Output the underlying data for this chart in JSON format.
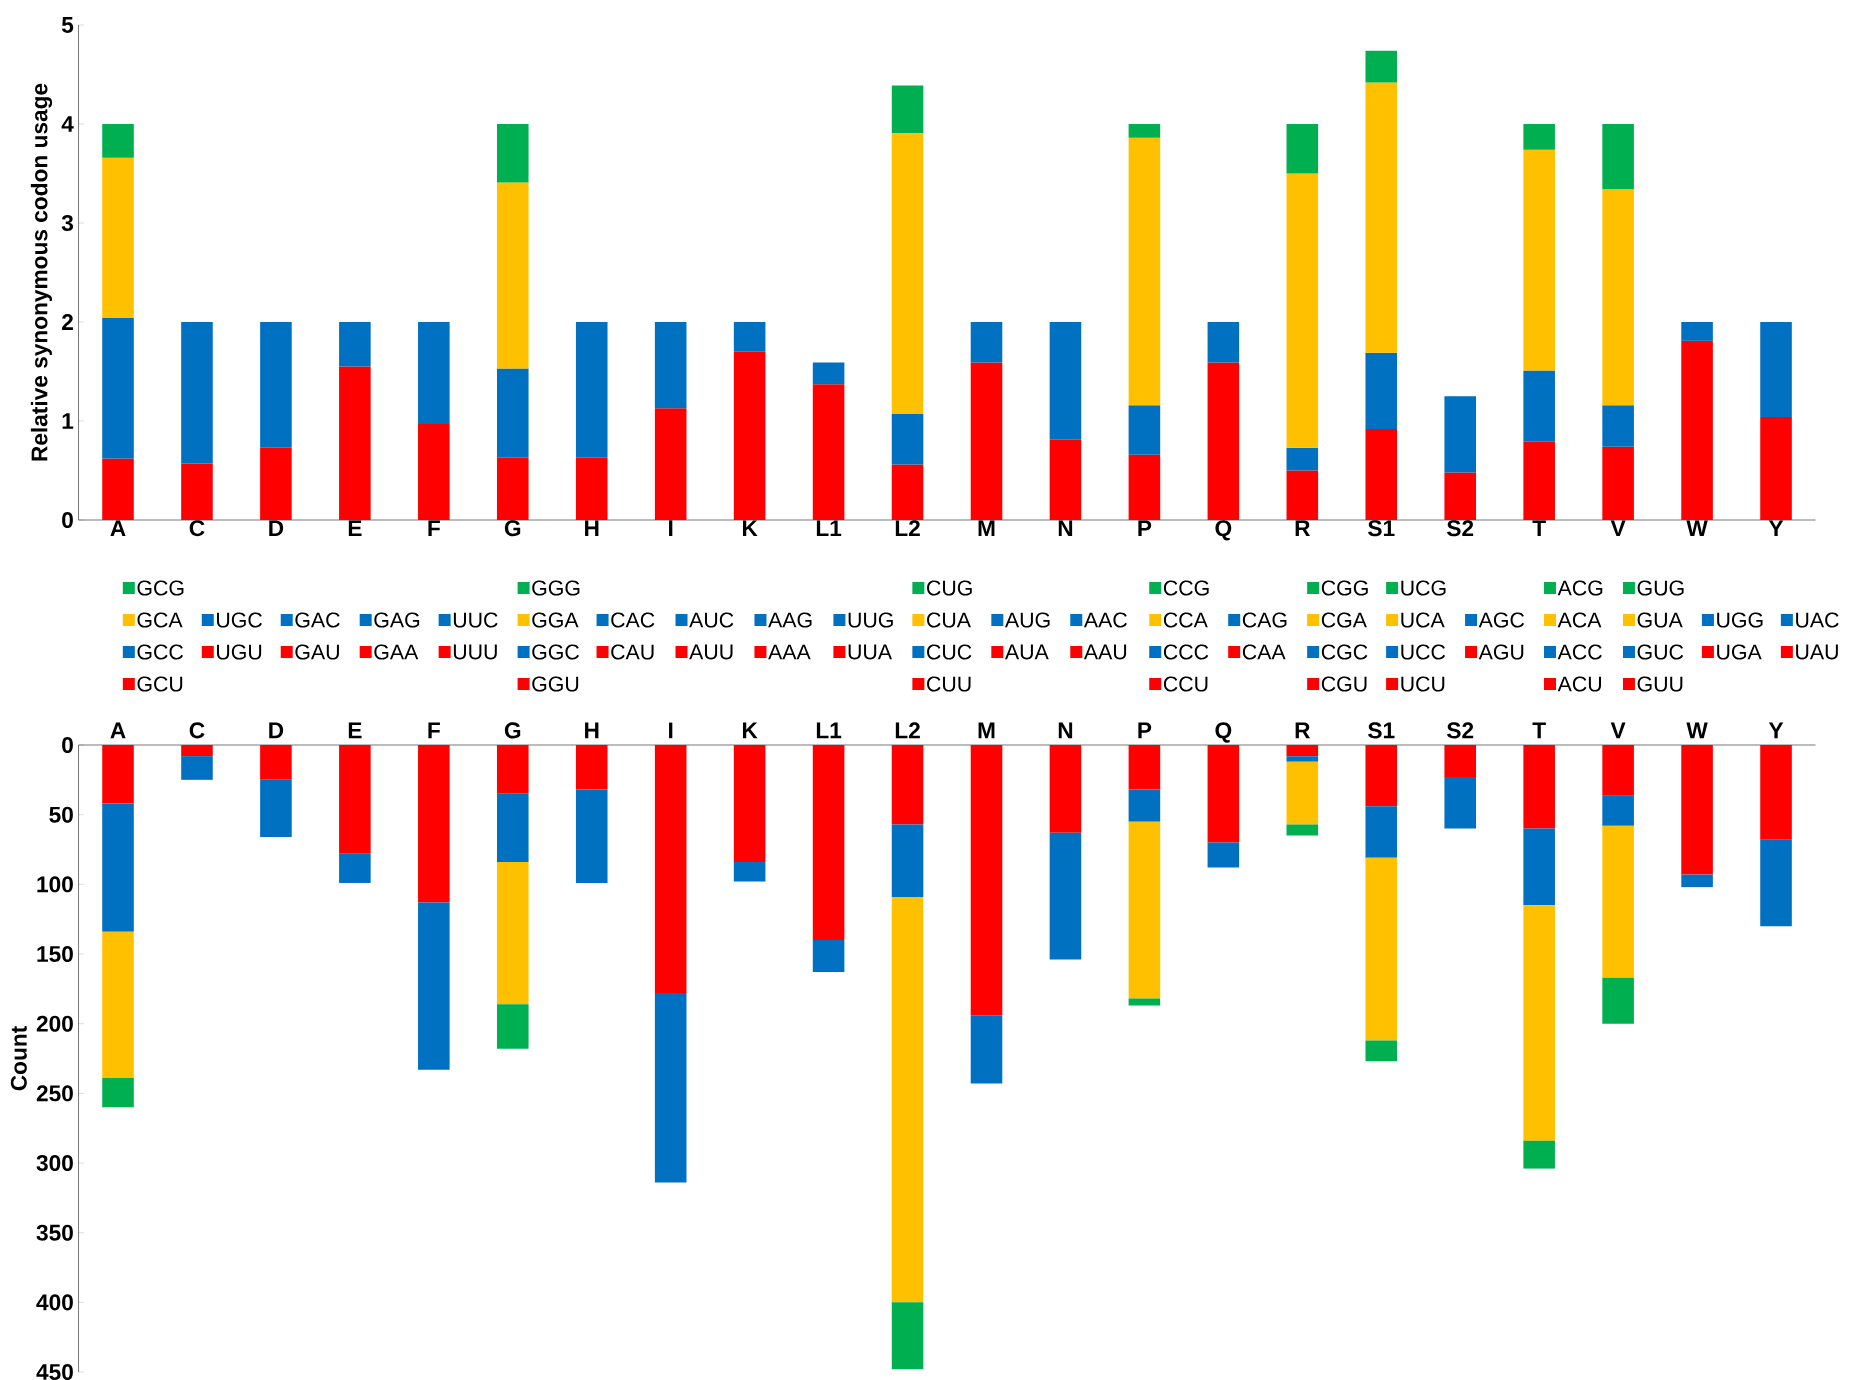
{
  "chart_data": [
    {
      "type": "bar",
      "stacked": true,
      "ylabel": "Relative synonymous codon usage",
      "legend": "bottom",
      "categories": [
        "A",
        "C",
        "D",
        "E",
        "F",
        "G",
        "H",
        "I",
        "K",
        "L1",
        "L2",
        "M",
        "N",
        "P",
        "Q",
        "R",
        "S1",
        "S2",
        "T",
        "V",
        "W",
        "Y"
      ],
      "ylim": [
        0,
        5
      ],
      "yticks": [
        0,
        1,
        2,
        3,
        4,
        5
      ],
      "series": [
        {
          "name": "GCU",
          "color": "#ff0000",
          "values": [
            0.62,
            null,
            null,
            null,
            null,
            null,
            null,
            null,
            null,
            null,
            null,
            null,
            null,
            null,
            null,
            null,
            null,
            null,
            null,
            null,
            null,
            null
          ]
        },
        {
          "name": "GCC",
          "color": "#0070c0",
          "values": [
            1.42,
            null,
            null,
            null,
            null,
            null,
            null,
            null,
            null,
            null,
            null,
            null,
            null,
            null,
            null,
            null,
            null,
            null,
            null,
            null,
            null,
            null
          ]
        },
        {
          "name": "GCA",
          "color": "#ffc000",
          "values": [
            1.62,
            null,
            null,
            null,
            null,
            null,
            null,
            null,
            null,
            null,
            null,
            null,
            null,
            null,
            null,
            null,
            null,
            null,
            null,
            null,
            null,
            null
          ]
        },
        {
          "name": "GCG",
          "color": "#00b050",
          "values": [
            0.34,
            null,
            null,
            null,
            null,
            null,
            null,
            null,
            null,
            null,
            null,
            null,
            null,
            null,
            null,
            null,
            null,
            null,
            null,
            null,
            null,
            null
          ]
        },
        {
          "name": "UGU",
          "color": "#ff0000",
          "values": [
            null,
            0.57,
            null,
            null,
            null,
            null,
            null,
            null,
            null,
            null,
            null,
            null,
            null,
            null,
            null,
            null,
            null,
            null,
            null,
            null,
            null,
            null
          ]
        },
        {
          "name": "UGC",
          "color": "#0070c0",
          "values": [
            null,
            1.43,
            null,
            null,
            null,
            null,
            null,
            null,
            null,
            null,
            null,
            null,
            null,
            null,
            null,
            null,
            null,
            null,
            null,
            null,
            null,
            null
          ]
        },
        {
          "name": "GAU",
          "color": "#ff0000",
          "values": [
            null,
            null,
            0.73,
            null,
            null,
            null,
            null,
            null,
            null,
            null,
            null,
            null,
            null,
            null,
            null,
            null,
            null,
            null,
            null,
            null,
            null,
            null
          ]
        },
        {
          "name": "GAC",
          "color": "#0070c0",
          "values": [
            null,
            null,
            1.27,
            null,
            null,
            null,
            null,
            null,
            null,
            null,
            null,
            null,
            null,
            null,
            null,
            null,
            null,
            null,
            null,
            null,
            null,
            null
          ]
        },
        {
          "name": "GAA",
          "color": "#ff0000",
          "values": [
            null,
            null,
            null,
            1.55,
            null,
            null,
            null,
            null,
            null,
            null,
            null,
            null,
            null,
            null,
            null,
            null,
            null,
            null,
            null,
            null,
            null,
            null
          ]
        },
        {
          "name": "GAG",
          "color": "#0070c0",
          "values": [
            null,
            null,
            null,
            0.45,
            null,
            null,
            null,
            null,
            null,
            null,
            null,
            null,
            null,
            null,
            null,
            null,
            null,
            null,
            null,
            null,
            null,
            null
          ]
        },
        {
          "name": "UUU",
          "color": "#ff0000",
          "values": [
            null,
            null,
            null,
            null,
            0.97,
            null,
            null,
            null,
            null,
            null,
            null,
            null,
            null,
            null,
            null,
            null,
            null,
            null,
            null,
            null,
            null,
            null
          ]
        },
        {
          "name": "UUC",
          "color": "#0070c0",
          "values": [
            null,
            null,
            null,
            null,
            1.03,
            null,
            null,
            null,
            null,
            null,
            null,
            null,
            null,
            null,
            null,
            null,
            null,
            null,
            null,
            null,
            null,
            null
          ]
        },
        {
          "name": "GGU",
          "color": "#ff0000",
          "values": [
            null,
            null,
            null,
            null,
            null,
            0.63,
            null,
            null,
            null,
            null,
            null,
            null,
            null,
            null,
            null,
            null,
            null,
            null,
            null,
            null,
            null,
            null
          ]
        },
        {
          "name": "GGC",
          "color": "#0070c0",
          "values": [
            null,
            null,
            null,
            null,
            null,
            0.9,
            null,
            null,
            null,
            null,
            null,
            null,
            null,
            null,
            null,
            null,
            null,
            null,
            null,
            null,
            null,
            null
          ]
        },
        {
          "name": "GGA",
          "color": "#ffc000",
          "values": [
            null,
            null,
            null,
            null,
            null,
            1.88,
            null,
            null,
            null,
            null,
            null,
            null,
            null,
            null,
            null,
            null,
            null,
            null,
            null,
            null,
            null,
            null
          ]
        },
        {
          "name": "GGG",
          "color": "#00b050",
          "values": [
            null,
            null,
            null,
            null,
            null,
            0.59,
            null,
            null,
            null,
            null,
            null,
            null,
            null,
            null,
            null,
            null,
            null,
            null,
            null,
            null,
            null,
            null
          ]
        },
        {
          "name": "CAU",
          "color": "#ff0000",
          "values": [
            null,
            null,
            null,
            null,
            null,
            null,
            0.63,
            null,
            null,
            null,
            null,
            null,
            null,
            null,
            null,
            null,
            null,
            null,
            null,
            null,
            null,
            null
          ]
        },
        {
          "name": "CAC",
          "color": "#0070c0",
          "values": [
            null,
            null,
            null,
            null,
            null,
            null,
            1.37,
            null,
            null,
            null,
            null,
            null,
            null,
            null,
            null,
            null,
            null,
            null,
            null,
            null,
            null,
            null
          ]
        },
        {
          "name": "AUU",
          "color": "#ff0000",
          "values": [
            null,
            null,
            null,
            null,
            null,
            null,
            null,
            1.13,
            null,
            null,
            null,
            null,
            null,
            null,
            null,
            null,
            null,
            null,
            null,
            null,
            null,
            null
          ]
        },
        {
          "name": "AUC",
          "color": "#0070c0",
          "values": [
            null,
            null,
            null,
            null,
            null,
            null,
            null,
            0.87,
            null,
            null,
            null,
            null,
            null,
            null,
            null,
            null,
            null,
            null,
            null,
            null,
            null,
            null
          ]
        },
        {
          "name": "AAA",
          "color": "#ff0000",
          "values": [
            null,
            null,
            null,
            null,
            null,
            null,
            null,
            null,
            1.7,
            null,
            null,
            null,
            null,
            null,
            null,
            null,
            null,
            null,
            null,
            null,
            null,
            null
          ]
        },
        {
          "name": "AAG",
          "color": "#0070c0",
          "values": [
            null,
            null,
            null,
            null,
            null,
            null,
            null,
            null,
            0.3,
            null,
            null,
            null,
            null,
            null,
            null,
            null,
            null,
            null,
            null,
            null,
            null,
            null
          ]
        },
        {
          "name": "UUA",
          "color": "#ff0000",
          "values": [
            null,
            null,
            null,
            null,
            null,
            null,
            null,
            null,
            null,
            1.37,
            null,
            null,
            null,
            null,
            null,
            null,
            null,
            null,
            null,
            null,
            null,
            null
          ]
        },
        {
          "name": "UUG",
          "color": "#0070c0",
          "values": [
            null,
            null,
            null,
            null,
            null,
            null,
            null,
            null,
            null,
            0.22,
            null,
            null,
            null,
            null,
            null,
            null,
            null,
            null,
            null,
            null,
            null,
            null
          ]
        },
        {
          "name": "CUU",
          "color": "#ff0000",
          "values": [
            null,
            null,
            null,
            null,
            null,
            null,
            null,
            null,
            null,
            null,
            0.56,
            null,
            null,
            null,
            null,
            null,
            null,
            null,
            null,
            null,
            null,
            null
          ]
        },
        {
          "name": "CUC",
          "color": "#0070c0",
          "values": [
            null,
            null,
            null,
            null,
            null,
            null,
            null,
            null,
            null,
            null,
            0.51,
            null,
            null,
            null,
            null,
            null,
            null,
            null,
            null,
            null,
            null,
            null
          ]
        },
        {
          "name": "CUA",
          "color": "#ffc000",
          "values": [
            null,
            null,
            null,
            null,
            null,
            null,
            null,
            null,
            null,
            null,
            2.84,
            null,
            null,
            null,
            null,
            null,
            null,
            null,
            null,
            null,
            null,
            null
          ]
        },
        {
          "name": "CUG",
          "color": "#00b050",
          "values": [
            null,
            null,
            null,
            null,
            null,
            null,
            null,
            null,
            null,
            null,
            0.48,
            null,
            null,
            null,
            null,
            null,
            null,
            null,
            null,
            null,
            null,
            null
          ]
        },
        {
          "name": "AUA",
          "color": "#ff0000",
          "values": [
            null,
            null,
            null,
            null,
            null,
            null,
            null,
            null,
            null,
            null,
            null,
            1.59,
            null,
            null,
            null,
            null,
            null,
            null,
            null,
            null,
            null,
            null
          ]
        },
        {
          "name": "AUG",
          "color": "#0070c0",
          "values": [
            null,
            null,
            null,
            null,
            null,
            null,
            null,
            null,
            null,
            null,
            null,
            0.41,
            null,
            null,
            null,
            null,
            null,
            null,
            null,
            null,
            null,
            null
          ]
        },
        {
          "name": "AAU",
          "color": "#ff0000",
          "values": [
            null,
            null,
            null,
            null,
            null,
            null,
            null,
            null,
            null,
            null,
            null,
            null,
            0.81,
            null,
            null,
            null,
            null,
            null,
            null,
            null,
            null,
            null
          ]
        },
        {
          "name": "AAC",
          "color": "#0070c0",
          "values": [
            null,
            null,
            null,
            null,
            null,
            null,
            null,
            null,
            null,
            null,
            null,
            null,
            1.19,
            null,
            null,
            null,
            null,
            null,
            null,
            null,
            null,
            null
          ]
        },
        {
          "name": "CCU",
          "color": "#ff0000",
          "values": [
            null,
            null,
            null,
            null,
            null,
            null,
            null,
            null,
            null,
            null,
            null,
            null,
            null,
            0.66,
            null,
            null,
            null,
            null,
            null,
            null,
            null,
            null
          ]
        },
        {
          "name": "CCC",
          "color": "#0070c0",
          "values": [
            null,
            null,
            null,
            null,
            null,
            null,
            null,
            null,
            null,
            null,
            null,
            null,
            null,
            0.5,
            null,
            null,
            null,
            null,
            null,
            null,
            null,
            null
          ]
        },
        {
          "name": "CCA",
          "color": "#ffc000",
          "values": [
            null,
            null,
            null,
            null,
            null,
            null,
            null,
            null,
            null,
            null,
            null,
            null,
            null,
            2.7,
            null,
            null,
            null,
            null,
            null,
            null,
            null,
            null
          ]
        },
        {
          "name": "CCG",
          "color": "#00b050",
          "values": [
            null,
            null,
            null,
            null,
            null,
            null,
            null,
            null,
            null,
            null,
            null,
            null,
            null,
            0.14,
            null,
            null,
            null,
            null,
            null,
            null,
            null,
            null
          ]
        },
        {
          "name": "CAA",
          "color": "#ff0000",
          "values": [
            null,
            null,
            null,
            null,
            null,
            null,
            null,
            null,
            null,
            null,
            null,
            null,
            null,
            null,
            1.59,
            null,
            null,
            null,
            null,
            null,
            null,
            null
          ]
        },
        {
          "name": "CAG",
          "color": "#0070c0",
          "values": [
            null,
            null,
            null,
            null,
            null,
            null,
            null,
            null,
            null,
            null,
            null,
            null,
            null,
            null,
            0.41,
            null,
            null,
            null,
            null,
            null,
            null,
            null
          ]
        },
        {
          "name": "CGU",
          "color": "#ff0000",
          "values": [
            null,
            null,
            null,
            null,
            null,
            null,
            null,
            null,
            null,
            null,
            null,
            null,
            null,
            null,
            null,
            0.5,
            null,
            null,
            null,
            null,
            null,
            null
          ]
        },
        {
          "name": "CGC",
          "color": "#0070c0",
          "values": [
            null,
            null,
            null,
            null,
            null,
            null,
            null,
            null,
            null,
            null,
            null,
            null,
            null,
            null,
            null,
            0.23,
            null,
            null,
            null,
            null,
            null,
            null
          ]
        },
        {
          "name": "CGA",
          "color": "#ffc000",
          "values": [
            null,
            null,
            null,
            null,
            null,
            null,
            null,
            null,
            null,
            null,
            null,
            null,
            null,
            null,
            null,
            2.77,
            null,
            null,
            null,
            null,
            null,
            null
          ]
        },
        {
          "name": "CGG",
          "color": "#00b050",
          "values": [
            null,
            null,
            null,
            null,
            null,
            null,
            null,
            null,
            null,
            null,
            null,
            null,
            null,
            null,
            null,
            0.5,
            null,
            null,
            null,
            null,
            null,
            null
          ]
        },
        {
          "name": "UCU",
          "color": "#ff0000",
          "values": [
            null,
            null,
            null,
            null,
            null,
            null,
            null,
            null,
            null,
            null,
            null,
            null,
            null,
            null,
            null,
            null,
            0.92,
            null,
            null,
            null,
            null,
            null
          ]
        },
        {
          "name": "UCC",
          "color": "#0070c0",
          "values": [
            null,
            null,
            null,
            null,
            null,
            null,
            null,
            null,
            null,
            null,
            null,
            null,
            null,
            null,
            null,
            null,
            0.77,
            null,
            null,
            null,
            null,
            null
          ]
        },
        {
          "name": "UCA",
          "color": "#ffc000",
          "values": [
            null,
            null,
            null,
            null,
            null,
            null,
            null,
            null,
            null,
            null,
            null,
            null,
            null,
            null,
            null,
            null,
            2.73,
            null,
            null,
            null,
            null,
            null
          ]
        },
        {
          "name": "UCG",
          "color": "#00b050",
          "values": [
            null,
            null,
            null,
            null,
            null,
            null,
            null,
            null,
            null,
            null,
            null,
            null,
            null,
            null,
            null,
            null,
            0.32,
            null,
            null,
            null,
            null,
            null
          ]
        },
        {
          "name": "AGU",
          "color": "#ff0000",
          "values": [
            null,
            null,
            null,
            null,
            null,
            null,
            null,
            null,
            null,
            null,
            null,
            null,
            null,
            null,
            null,
            null,
            null,
            0.48,
            null,
            null,
            null,
            null
          ]
        },
        {
          "name": "AGC",
          "color": "#0070c0",
          "values": [
            null,
            null,
            null,
            null,
            null,
            null,
            null,
            null,
            null,
            null,
            null,
            null,
            null,
            null,
            null,
            null,
            null,
            0.77,
            null,
            null,
            null,
            null
          ]
        },
        {
          "name": "ACU",
          "color": "#ff0000",
          "values": [
            null,
            null,
            null,
            null,
            null,
            null,
            null,
            null,
            null,
            null,
            null,
            null,
            null,
            null,
            null,
            null,
            null,
            null,
            0.79,
            null,
            null,
            null
          ]
        },
        {
          "name": "ACC",
          "color": "#0070c0",
          "values": [
            null,
            null,
            null,
            null,
            null,
            null,
            null,
            null,
            null,
            null,
            null,
            null,
            null,
            null,
            null,
            null,
            null,
            null,
            0.72,
            null,
            null,
            null
          ]
        },
        {
          "name": "ACA",
          "color": "#ffc000",
          "values": [
            null,
            null,
            null,
            null,
            null,
            null,
            null,
            null,
            null,
            null,
            null,
            null,
            null,
            null,
            null,
            null,
            null,
            null,
            2.23,
            null,
            null,
            null
          ]
        },
        {
          "name": "ACG",
          "color": "#00b050",
          "values": [
            null,
            null,
            null,
            null,
            null,
            null,
            null,
            null,
            null,
            null,
            null,
            null,
            null,
            null,
            null,
            null,
            null,
            null,
            0.26,
            null,
            null,
            null
          ]
        },
        {
          "name": "GUU",
          "color": "#ff0000",
          "values": [
            null,
            null,
            null,
            null,
            null,
            null,
            null,
            null,
            null,
            null,
            null,
            null,
            null,
            null,
            null,
            null,
            null,
            null,
            null,
            0.74,
            null,
            null
          ]
        },
        {
          "name": "GUC",
          "color": "#0070c0",
          "values": [
            null,
            null,
            null,
            null,
            null,
            null,
            null,
            null,
            null,
            null,
            null,
            null,
            null,
            null,
            null,
            null,
            null,
            null,
            null,
            0.42,
            null,
            null
          ]
        },
        {
          "name": "GUA",
          "color": "#ffc000",
          "values": [
            null,
            null,
            null,
            null,
            null,
            null,
            null,
            null,
            null,
            null,
            null,
            null,
            null,
            null,
            null,
            null,
            null,
            null,
            null,
            2.18,
            null,
            null
          ]
        },
        {
          "name": "GUG",
          "color": "#00b050",
          "values": [
            null,
            null,
            null,
            null,
            null,
            null,
            null,
            null,
            null,
            null,
            null,
            null,
            null,
            null,
            null,
            null,
            null,
            null,
            null,
            0.66,
            null,
            null
          ]
        },
        {
          "name": "UGA",
          "color": "#ff0000",
          "values": [
            null,
            null,
            null,
            null,
            null,
            null,
            null,
            null,
            null,
            null,
            null,
            null,
            null,
            null,
            null,
            null,
            null,
            null,
            null,
            null,
            1.81,
            null
          ]
        },
        {
          "name": "UGG",
          "color": "#0070c0",
          "values": [
            null,
            null,
            null,
            null,
            null,
            null,
            null,
            null,
            null,
            null,
            null,
            null,
            null,
            null,
            null,
            null,
            null,
            null,
            null,
            null,
            0.19,
            null
          ]
        },
        {
          "name": "UAU",
          "color": "#ff0000",
          "values": [
            null,
            null,
            null,
            null,
            null,
            null,
            null,
            null,
            null,
            null,
            null,
            null,
            null,
            null,
            null,
            null,
            null,
            null,
            null,
            null,
            null,
            1.04
          ]
        },
        {
          "name": "UAC",
          "color": "#0070c0",
          "values": [
            null,
            null,
            null,
            null,
            null,
            null,
            null,
            null,
            null,
            null,
            null,
            null,
            null,
            null,
            null,
            null,
            null,
            null,
            null,
            null,
            null,
            0.96
          ]
        }
      ]
    },
    {
      "type": "bar",
      "stacked": true,
      "ylabel": "Count",
      "categories": [
        "A",
        "C",
        "D",
        "E",
        "F",
        "G",
        "H",
        "I",
        "K",
        "L1",
        "L2",
        "M",
        "N",
        "P",
        "Q",
        "R",
        "S1",
        "S2",
        "T",
        "V",
        "W",
        "Y"
      ],
      "ylim": [
        450,
        0
      ],
      "yticks": [
        0,
        50,
        100,
        150,
        200,
        250,
        300,
        350,
        400,
        450
      ],
      "series": [
        {
          "color": "#ff0000",
          "values": [
            42,
            8,
            25,
            78,
            113,
            35,
            32,
            178,
            84,
            140,
            57,
            194,
            63,
            32,
            70,
            8,
            44,
            23,
            60,
            36,
            93,
            68
          ]
        },
        {
          "color": "#0070c0",
          "values": [
            92,
            17,
            41,
            21,
            120,
            49,
            67,
            136,
            14,
            23,
            52,
            49,
            91,
            23,
            18,
            4,
            37,
            37,
            55,
            22,
            9,
            62
          ]
        },
        {
          "color": "#ffc000",
          "values": [
            105,
            null,
            null,
            null,
            null,
            102,
            null,
            null,
            null,
            null,
            291,
            null,
            null,
            127,
            null,
            45,
            131,
            null,
            169,
            109,
            null,
            null
          ]
        },
        {
          "color": "#00b050",
          "values": [
            21,
            null,
            null,
            null,
            null,
            32,
            null,
            null,
            null,
            null,
            48,
            null,
            null,
            5,
            null,
            8,
            15,
            null,
            20,
            33,
            null,
            null
          ]
        }
      ]
    }
  ]
}
